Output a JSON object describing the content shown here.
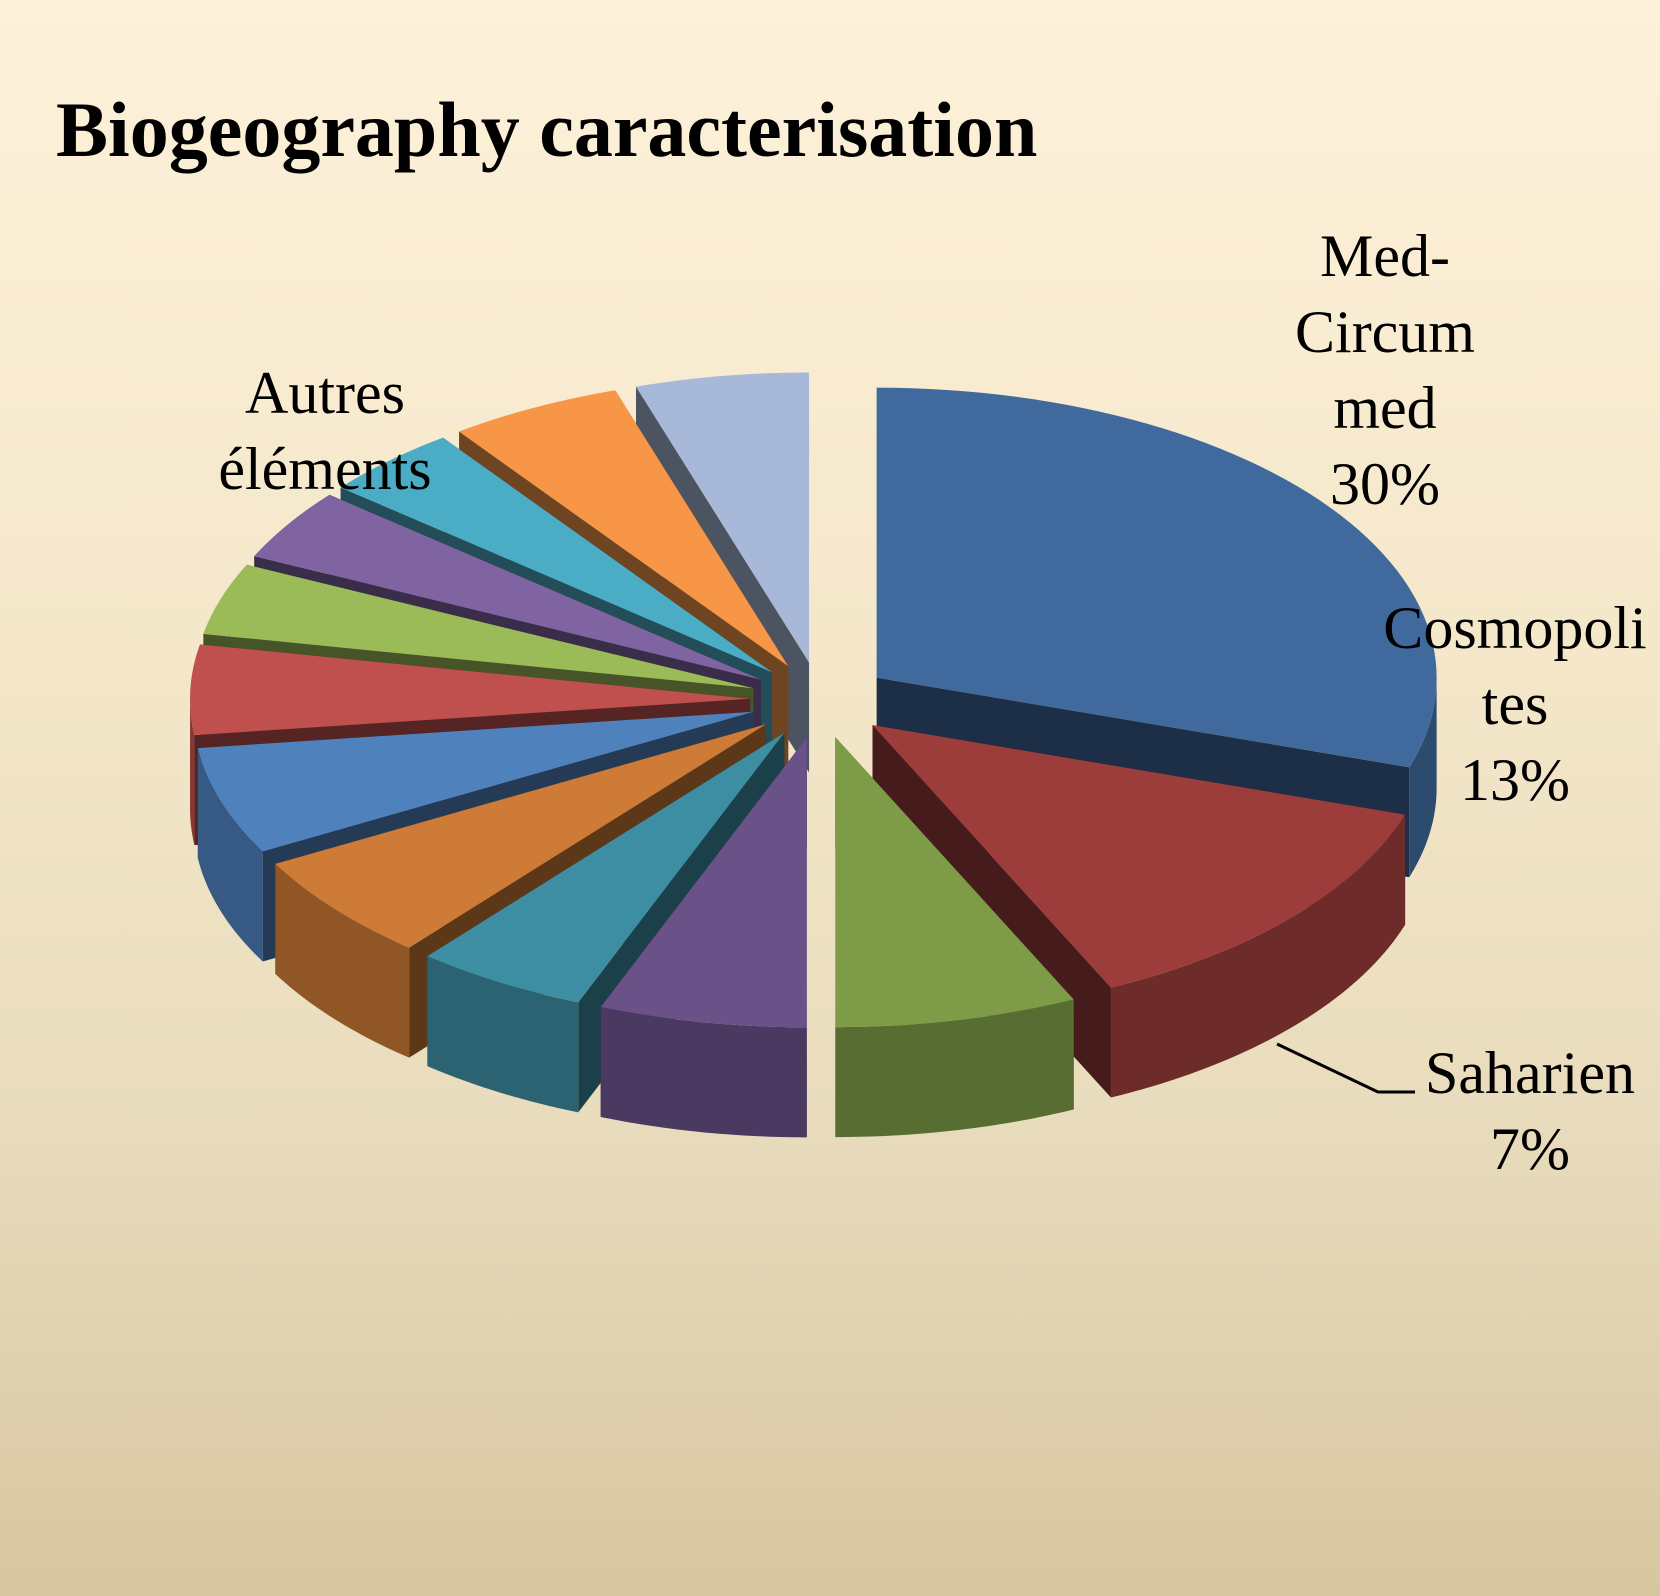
{
  "chart_data": {
    "type": "pie3d",
    "title": "Biogeography caracterisation",
    "categories": [
      "Med-Circum med",
      "Cosmopolites",
      "Saharien",
      null,
      null,
      null,
      null,
      null,
      null,
      null,
      null,
      null,
      "Autres éléments"
    ],
    "values": [
      30,
      13,
      7,
      6,
      5,
      6,
      6,
      5,
      4,
      4,
      4,
      5,
      5
    ],
    "value_labels": [
      "30%",
      "13%",
      "7%",
      null,
      null,
      null,
      null,
      null,
      null,
      null,
      null,
      null,
      null
    ],
    "colors": [
      "#40699e",
      "#9c3d3b",
      "#7e9b47",
      "#6a5289",
      "#3d8ea3",
      "#cd7b36",
      "#4f81bd",
      "#c0504d",
      "#9bbb59",
      "#8064a2",
      "#4bacc6",
      "#f79646",
      "#a8b8d8"
    ]
  }
}
